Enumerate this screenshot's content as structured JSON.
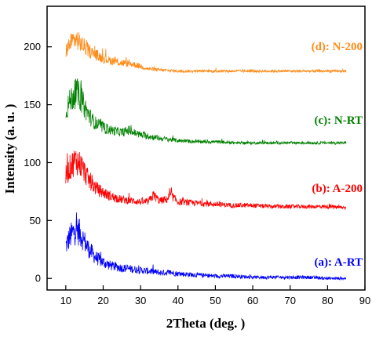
{
  "chart_data": {
    "type": "line",
    "xlabel": "2Theta (deg. )",
    "ylabel": "Intensity (a. u. )",
    "xlim": [
      5,
      90
    ],
    "ylim": [
      -10,
      235
    ],
    "x_ticks": [
      10,
      20,
      30,
      40,
      50,
      60,
      70,
      80,
      90
    ],
    "y_ticks": [
      0,
      50,
      100,
      150,
      200
    ],
    "grid": false,
    "legend": "inline labels at right end of each series",
    "x_range": [
      10,
      85
    ],
    "series": [
      {
        "name": "(a): A-RT",
        "color": "#0000ff",
        "x": [
          10,
          11,
          12,
          13,
          14,
          15,
          16,
          17,
          18,
          20,
          22,
          25,
          28,
          30,
          33,
          35,
          38,
          40,
          45,
          50,
          55,
          60,
          65,
          70,
          75,
          80,
          85
        ],
        "y": [
          28,
          35,
          40,
          42,
          38,
          32,
          26,
          22,
          18,
          14,
          11,
          9,
          8,
          7,
          6,
          5,
          5,
          4,
          3,
          2,
          2,
          1,
          1,
          1,
          1,
          0,
          0
        ]
      },
      {
        "name": "(b): A-200",
        "color": "#ff0000",
        "x": [
          10,
          11,
          12,
          13,
          14,
          15,
          16,
          17,
          18,
          20,
          22,
          25,
          28,
          30,
          32,
          33.5,
          35,
          37,
          38,
          40,
          45,
          50,
          55,
          60,
          65,
          70,
          75,
          80,
          85
        ],
        "y": [
          88,
          95,
          100,
          102,
          98,
          92,
          86,
          82,
          78,
          74,
          71,
          68,
          67,
          66,
          66,
          72,
          67,
          68,
          72,
          66,
          65,
          64,
          63,
          63,
          62,
          62,
          62,
          62,
          61
        ],
        "offset": 60
      },
      {
        "name": "(c): N-RT",
        "color": "#008000",
        "x": [
          10,
          11,
          12,
          13,
          14,
          15,
          16,
          17,
          18,
          20,
          22,
          25,
          27,
          28,
          30,
          35,
          40,
          45,
          50,
          55,
          60,
          65,
          70,
          75,
          80,
          85
        ],
        "y": [
          145,
          152,
          158,
          160,
          156,
          148,
          142,
          137,
          134,
          130,
          128,
          126,
          128,
          126,
          124,
          121,
          119,
          118,
          118,
          117,
          117,
          117,
          117,
          117,
          117,
          117
        ],
        "offset": 117
      },
      {
        "name": "(d): N-200",
        "color": "#ff8c1a",
        "x": [
          10,
          11,
          12,
          13,
          14,
          15,
          16,
          17,
          18,
          20,
          22,
          25,
          28,
          30,
          32,
          35,
          40,
          45,
          50,
          55,
          60,
          65,
          70,
          75,
          80,
          85
        ],
        "y": [
          196,
          202,
          206,
          206,
          203,
          200,
          197,
          195,
          193,
          190,
          188,
          186,
          185,
          183,
          181,
          180,
          179,
          179,
          179,
          179,
          179,
          179,
          179,
          179,
          179,
          179
        ],
        "offset": 179
      }
    ]
  }
}
